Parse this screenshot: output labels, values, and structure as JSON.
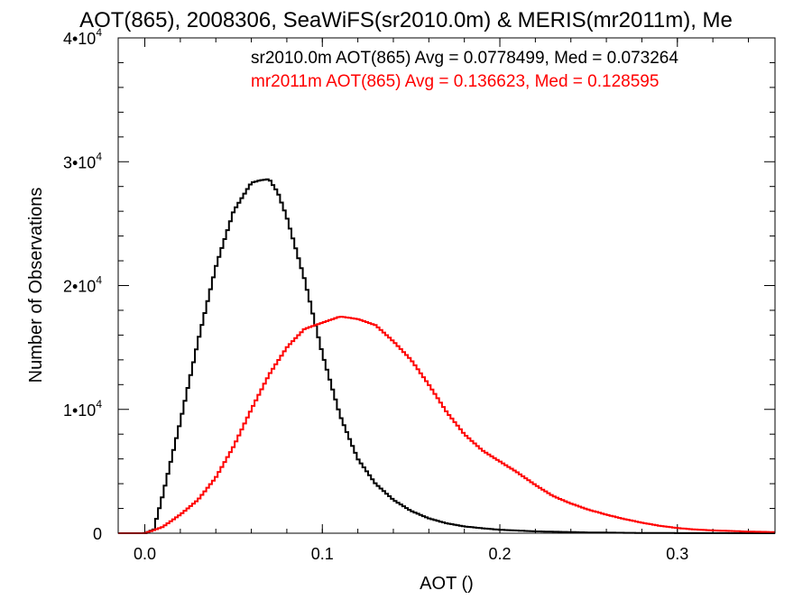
{
  "chart_data": {
    "type": "line",
    "title": "AOT(865), 2008306, SeaWiFS(sr2010.0m) & MERIS(mr2011m), Me",
    "xlabel": "AOT ()",
    "ylabel": "Number of Observations",
    "xlim": [
      -0.015,
      0.355
    ],
    "ylim": [
      0,
      40000
    ],
    "x_ticks": [
      {
        "value": 0.0,
        "label": "0.0"
      },
      {
        "value": 0.1,
        "label": "0.1"
      },
      {
        "value": 0.2,
        "label": "0.2"
      },
      {
        "value": 0.3,
        "label": "0.3"
      }
    ],
    "y_ticks": [
      {
        "value": 0,
        "label": "0",
        "exp": ""
      },
      {
        "value": 10000,
        "label": "1•10",
        "exp": "4"
      },
      {
        "value": 20000,
        "label": "2•10",
        "exp": "4"
      },
      {
        "value": 30000,
        "label": "3•10",
        "exp": "4"
      },
      {
        "value": 40000,
        "label": "4•10",
        "exp": "4"
      }
    ],
    "grid": false,
    "step": true,
    "series": [
      {
        "name": "sr2010.0m AOT(865) Avg = 0.0778499, Med = 0.073264",
        "color": "#000000",
        "x": [
          0.0,
          0.005,
          0.01,
          0.02,
          0.03,
          0.04,
          0.05,
          0.06,
          0.065,
          0.07,
          0.075,
          0.08,
          0.09,
          0.1,
          0.11,
          0.12,
          0.13,
          0.14,
          0.15,
          0.16,
          0.17,
          0.18,
          0.19,
          0.2,
          0.22,
          0.25,
          0.28,
          0.3,
          0.32,
          0.355
        ],
        "y": [
          0,
          300,
          3000,
          9000,
          15500,
          21500,
          26000,
          28300,
          28500,
          28600,
          27500,
          25500,
          20500,
          14500,
          9500,
          6000,
          4000,
          2700,
          1800,
          1200,
          800,
          550,
          400,
          280,
          150,
          60,
          20,
          10,
          5,
          0
        ]
      },
      {
        "name": "mr2011m AOT(865) Avg = 0.136623, Med = 0.128595",
        "color": "#ff0000",
        "x": [
          0.0,
          0.01,
          0.02,
          0.03,
          0.04,
          0.05,
          0.06,
          0.07,
          0.08,
          0.09,
          0.1,
          0.11,
          0.12,
          0.13,
          0.14,
          0.15,
          0.16,
          0.17,
          0.18,
          0.19,
          0.2,
          0.21,
          0.22,
          0.23,
          0.24,
          0.25,
          0.26,
          0.27,
          0.28,
          0.29,
          0.3,
          0.31,
          0.32,
          0.33,
          0.34,
          0.355
        ],
        "y": [
          0,
          500,
          1500,
          2700,
          4500,
          7000,
          10000,
          12800,
          15000,
          16500,
          17000,
          17500,
          17300,
          16800,
          15500,
          14000,
          12000,
          9800,
          8000,
          6700,
          5800,
          4900,
          3900,
          3000,
          2400,
          1900,
          1500,
          1150,
          850,
          600,
          420,
          300,
          230,
          180,
          130,
          90
        ]
      }
    ]
  }
}
